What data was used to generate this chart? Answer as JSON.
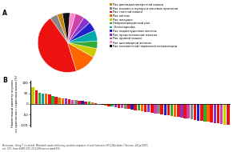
{
  "title_A": "A",
  "title_B": "B",
  "legend_labels": [
    "Рак двенадцатиперстной кишки",
    "Рак мочевого пузыря и мочевых протоков",
    "Рак толстой кишки",
    "Рак лёгких",
    "Рак желудка",
    "Нейроэндокринный рак",
    "Остеосаркома",
    "Рак поджелудочной железы",
    "Рак предстательной железы",
    "Рак прямой кишки",
    "Рак щитовидной железы",
    "Рак неизвестной первичной локализации"
  ],
  "legend_colors": [
    "#C8860A",
    "#888888",
    "#EE1111",
    "#FF6600",
    "#CCCC00",
    "#33AA33",
    "#00AAAA",
    "#2222CC",
    "#8833CC",
    "#CC44AA",
    "#FF88CC",
    "#111111"
  ],
  "pie_sizes": [
    3,
    4,
    45,
    12,
    5,
    4,
    6,
    5,
    4,
    5,
    3,
    4
  ],
  "pie_startangle": 100,
  "pie_colors": [
    "#C8860A",
    "#888888",
    "#EE1111",
    "#FF6600",
    "#CCCC00",
    "#33AA33",
    "#00AAAA",
    "#2222CC",
    "#8833CC",
    "#CC44AA",
    "#FF88CC",
    "#111111"
  ],
  "ylabel": "Наименьший диаметр опухоли\nпо сравнению с первоначальным (%)",
  "yticks": [
    -100,
    -50,
    0,
    50,
    100
  ],
  "source_text": "Источник:  Dung T. Le and al. Mismatch repair deficiency predicts response of solid tumors to PD-1 Blockade // Science. 28 Jul 2017;\nvol. 357, Issue 6349, DOI: 10.1126/science.aan6733",
  "bar_values": [
    77,
    64,
    52,
    50,
    47,
    44,
    38,
    34,
    31,
    26,
    25,
    22,
    20,
    17,
    15,
    13,
    12,
    10,
    8,
    5,
    -2,
    -5,
    -8,
    -10,
    -12,
    -15,
    -18,
    -20,
    -22,
    -25,
    -28,
    -30,
    -32,
    -35,
    -38,
    -40,
    -42,
    -45,
    -47,
    -50,
    -52,
    -55,
    -58,
    -60,
    -62,
    -65,
    -68,
    -70,
    -72,
    -75,
    -78,
    -80,
    -82,
    -85,
    -88,
    -90,
    -92,
    -95,
    -98,
    -100
  ],
  "bar_colors_list": [
    "#CCCC00",
    "#EE1111",
    "#33AA33",
    "#00AAAA",
    "#FF6600",
    "#EE1111",
    "#33AA33",
    "#EE1111",
    "#C8860A",
    "#FF6600",
    "#8833CC",
    "#EE1111",
    "#CC44AA",
    "#888888",
    "#EE1111",
    "#2222CC",
    "#EE1111",
    "#33AA33",
    "#FF6600",
    "#EE1111",
    "#EE1111",
    "#2222CC",
    "#FF6600",
    "#EE1111",
    "#33AA33",
    "#8833CC",
    "#EE1111",
    "#CC44AA",
    "#888888",
    "#EE1111",
    "#2222CC",
    "#EE1111",
    "#33AA33",
    "#FF6600",
    "#EE1111",
    "#8833CC",
    "#EE1111",
    "#CC44AA",
    "#888888",
    "#EE1111",
    "#2222CC",
    "#EE1111",
    "#33AA33",
    "#FF6600",
    "#EE1111",
    "#8833CC",
    "#EE1111",
    "#CC44AA",
    "#888888",
    "#EE1111",
    "#2222CC",
    "#EE1111",
    "#33AA33",
    "#FF6600",
    "#EE1111",
    "#8833CC",
    "#EE1111",
    "#CC44AA",
    "#CCCC00",
    "#EE1111"
  ],
  "background_color": "#ffffff"
}
